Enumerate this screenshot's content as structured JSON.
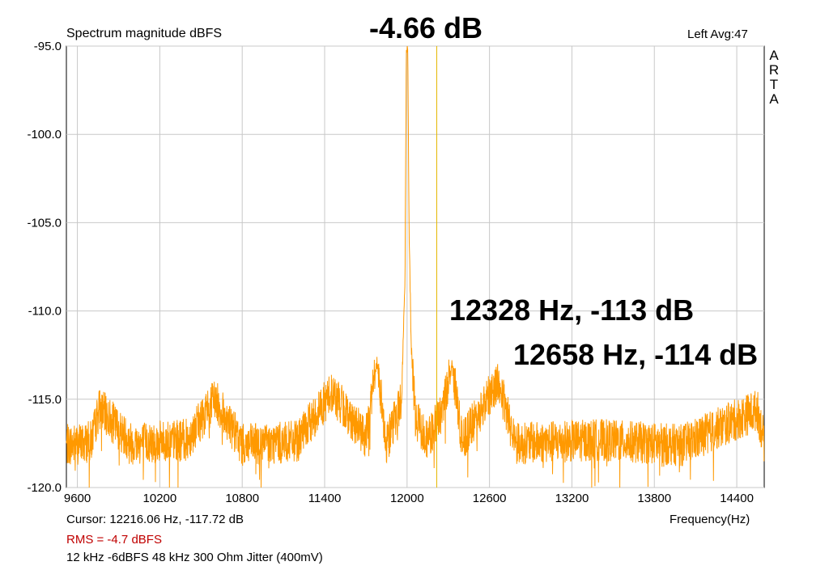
{
  "header": {
    "title": "Spectrum magnitude dBFS",
    "peak_level": "-4.66 dB",
    "channel_avg": "Left  Avg:47",
    "brand_letters": [
      "A",
      "R",
      "T",
      "A"
    ]
  },
  "annotations": [
    "12328 Hz, -113 dB",
    "12658 Hz, -114 dB"
  ],
  "footer": {
    "cursor": "Cursor: 12216.06 Hz, -117.72 dB",
    "rms": "RMS =    -4.7 dBFS",
    "description": "12 kHz -6dBFS 48 kHz 300 Ohm Jitter (400mV)"
  },
  "colors": {
    "trace": "#ff9900",
    "marker": "#e6b800",
    "grid": "#c8c8c8",
    "rms_text": "#c00000"
  },
  "chart_data": {
    "type": "line",
    "title": "Spectrum magnitude dBFS",
    "xlabel": "Frequency(Hz)",
    "ylabel": "",
    "xlim": [
      9520,
      14600
    ],
    "ylim": [
      -120,
      -95
    ],
    "grid": true,
    "x_ticks": [
      9600,
      10200,
      10800,
      11400,
      12000,
      12600,
      13200,
      13800,
      14400
    ],
    "x_tick_labels": [
      "9600",
      "10200",
      "10800",
      "11400",
      "12000",
      "12600",
      "13200",
      "13800",
      "14400"
    ],
    "y_ticks": [
      -95,
      -100,
      -105,
      -110,
      -115,
      -120
    ],
    "y_tick_labels": [
      "-95.0",
      "-100.0",
      "-105.0",
      "-110.0",
      "-115.0",
      "-120.0"
    ],
    "noise_floor_db": -117.5,
    "cursor": {
      "x": 12216.06,
      "y": -117.72
    },
    "series": [
      {
        "values_note": "",
        "points": [
          [
            9520,
            -117.6
          ],
          [
            9700,
            -117.4
          ],
          [
            9760,
            -115.5
          ],
          [
            10000,
            -117.5
          ],
          [
            10400,
            -117.3
          ],
          [
            10600,
            -115.0
          ],
          [
            10800,
            -117.6
          ],
          [
            11200,
            -117.4
          ],
          [
            11450,
            -114.6
          ],
          [
            11700,
            -117.2
          ],
          [
            11780,
            -112.8
          ],
          [
            11850,
            -117.5
          ],
          [
            11960,
            -115.0
          ],
          [
            11985,
            -108.0
          ],
          [
            11995,
            -95.0
          ],
          [
            12000,
            -95.0
          ],
          [
            12005,
            -95.0
          ],
          [
            12015,
            -105.5
          ],
          [
            12030,
            -112.0
          ],
          [
            12060,
            -116.0
          ],
          [
            12150,
            -117.3
          ],
          [
            12250,
            -115.8
          ],
          [
            12328,
            -113.0
          ],
          [
            12400,
            -117.4
          ],
          [
            12658,
            -114.0
          ],
          [
            12800,
            -117.5
          ],
          [
            13400,
            -117.3
          ],
          [
            14000,
            -117.6
          ],
          [
            14550,
            -115.6
          ],
          [
            14600,
            -117.4
          ]
        ]
      }
    ]
  }
}
